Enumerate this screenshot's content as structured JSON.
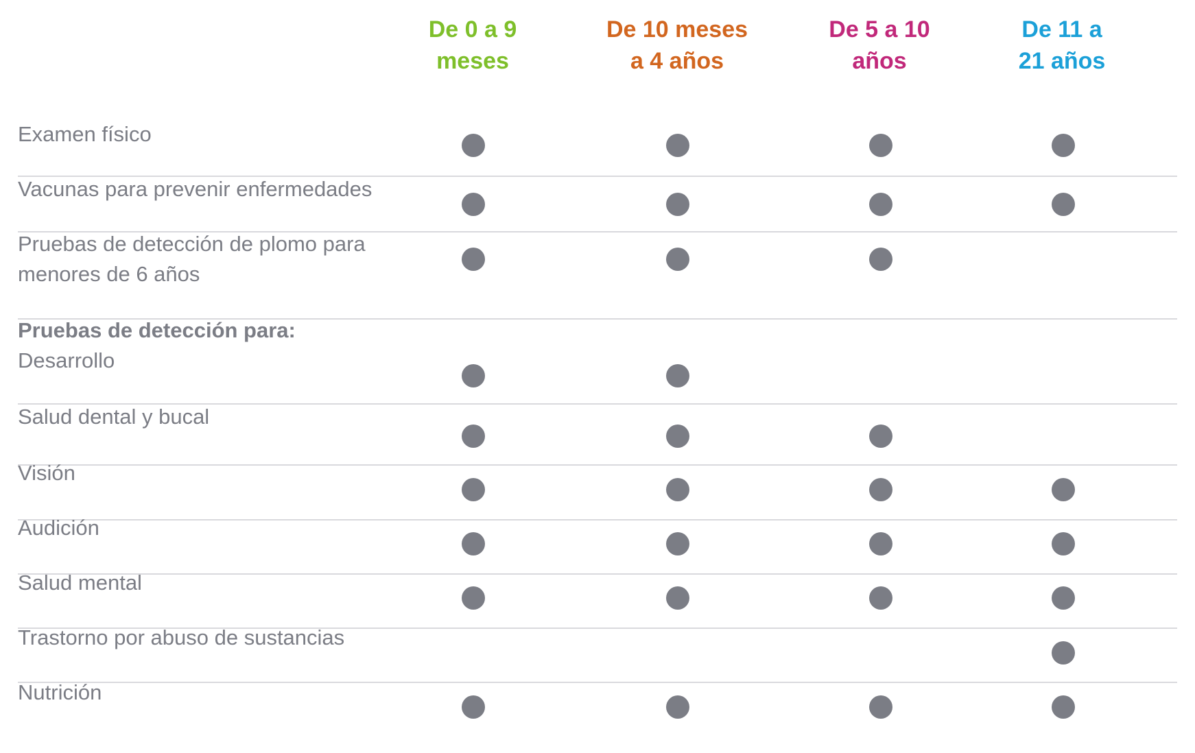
{
  "columns": [
    {
      "label": "De 0 a 9\nmeses",
      "color": "#7ebf2a"
    },
    {
      "label": "De 10 meses\na 4 años",
      "color": "#d2661f"
    },
    {
      "label": "De 5 a 10\naños",
      "color": "#c1287a"
    },
    {
      "label": "De 11 a\n21 años",
      "color": "#1ba0d8"
    }
  ],
  "rows": [
    {
      "label": "Examen físico",
      "marks": [
        true,
        true,
        true,
        true
      ]
    },
    {
      "label": "Vacunas para prevenir enfermedades",
      "marks": [
        true,
        true,
        true,
        true
      ]
    },
    {
      "label": "Pruebas de detección de plomo para\nmenores de 6 años",
      "marks": [
        true,
        true,
        true,
        false
      ]
    },
    {
      "heading": "Pruebas de detección para:",
      "label": "Desarrollo",
      "marks": [
        true,
        true,
        false,
        false
      ]
    },
    {
      "label": "Salud dental y bucal",
      "marks": [
        true,
        true,
        true,
        false
      ]
    },
    {
      "label": "Visión",
      "marks": [
        true,
        true,
        true,
        true
      ]
    },
    {
      "label": "Audición",
      "marks": [
        true,
        true,
        true,
        true
      ]
    },
    {
      "label": "Salud mental",
      "marks": [
        true,
        true,
        true,
        true
      ]
    },
    {
      "label": "Trastorno por abuso de sustancias",
      "marks": [
        false,
        false,
        false,
        true
      ]
    },
    {
      "label": "Nutrición",
      "marks": [
        true,
        true,
        true,
        true
      ]
    }
  ],
  "mark_color": "#7b7d85",
  "divider_color": "#d9d9dd",
  "label_color": "#7b7d85"
}
